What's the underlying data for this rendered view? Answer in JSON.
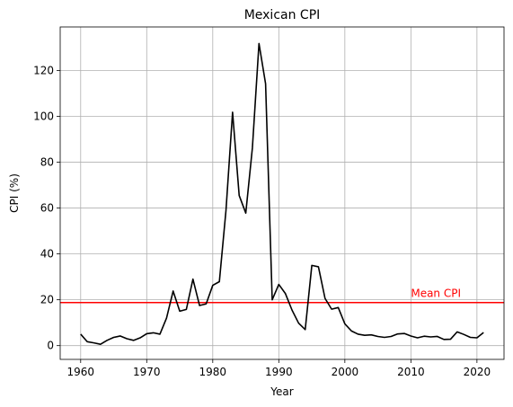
{
  "chart_data": {
    "type": "line",
    "title": "Mexican CPI",
    "xlabel": "Year",
    "ylabel": "CPI (%)",
    "xlim": [
      1956.9,
      2024.1
    ],
    "ylim": [
      -6,
      139
    ],
    "xticks": [
      1960,
      1970,
      1980,
      1990,
      2000,
      2010,
      2020
    ],
    "yticks": [
      0,
      20,
      40,
      60,
      80,
      100,
      120
    ],
    "grid": true,
    "series": [
      {
        "color": "#000000",
        "x": [
          1960,
          1961,
          1962,
          1963,
          1964,
          1965,
          1966,
          1967,
          1968,
          1969,
          1970,
          1971,
          1972,
          1973,
          1974,
          1975,
          1976,
          1977,
          1978,
          1979,
          1980,
          1981,
          1982,
          1983,
          1984,
          1985,
          1986,
          1987,
          1988,
          1989,
          1990,
          1991,
          1992,
          1993,
          1994,
          1995,
          1996,
          1997,
          1998,
          1999,
          2000,
          2001,
          2002,
          2003,
          2004,
          2005,
          2006,
          2007,
          2008,
          2009,
          2010,
          2011,
          2012,
          2013,
          2014,
          2015,
          2016,
          2017,
          2018,
          2019,
          2020,
          2021
        ],
        "y": [
          5.0,
          1.7,
          1.2,
          0.6,
          2.3,
          3.6,
          4.2,
          3.0,
          2.3,
          3.4,
          5.2,
          5.6,
          5.0,
          12.0,
          23.8,
          15.0,
          15.8,
          29.0,
          17.5,
          18.2,
          26.3,
          27.9,
          58.9,
          101.8,
          65.5,
          57.8,
          86.2,
          131.8,
          114.2,
          20.0,
          26.7,
          22.7,
          15.5,
          9.8,
          7.0,
          35.0,
          34.4,
          20.6,
          15.9,
          16.6,
          9.5,
          6.4,
          5.0,
          4.5,
          4.7,
          4.0,
          3.6,
          4.0,
          5.1,
          5.3,
          4.2,
          3.4,
          4.1,
          3.8,
          4.0,
          2.7,
          2.8,
          6.0,
          4.9,
          3.6,
          3.4,
          5.7
        ]
      }
    ],
    "mean_line": {
      "value": 18.8,
      "color": "#ff0000",
      "label": "Mean CPI",
      "label_x": 2010
    }
  }
}
